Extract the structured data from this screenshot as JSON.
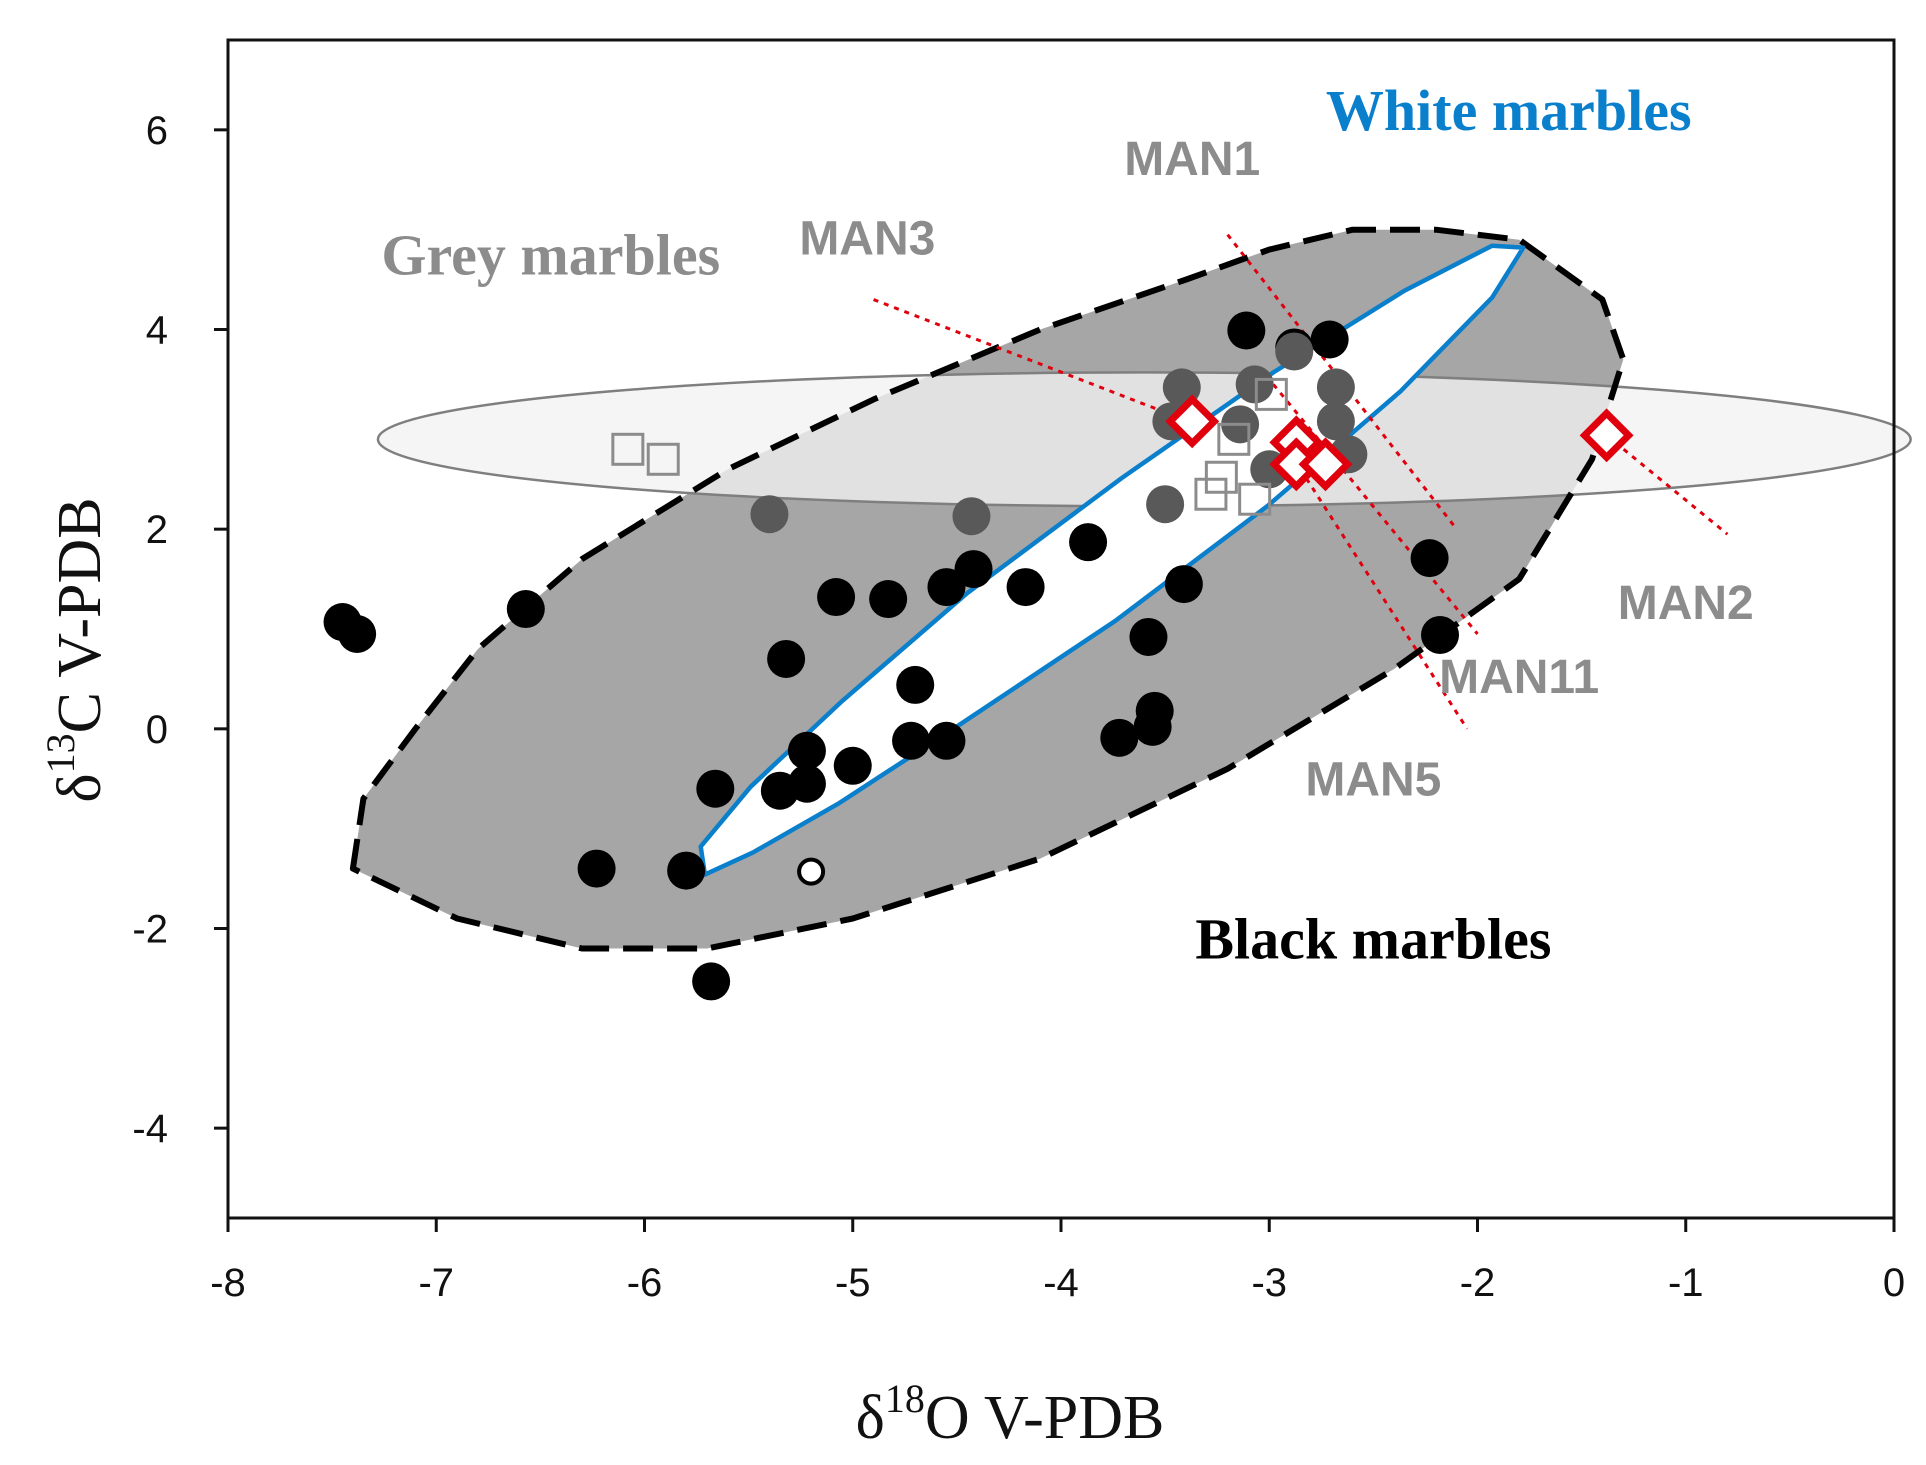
{
  "chart_data": {
    "type": "scatter",
    "xlabel": {
      "prefix": "δ",
      "sup": "18",
      "main": "O  V-PDB"
    },
    "ylabel": {
      "prefix": "δ",
      "sup": "13",
      "main": "C  V-PDB"
    },
    "xlim": [
      -8,
      0
    ],
    "ylim": [
      -4.9,
      6.9
    ],
    "xticks": [
      "-8",
      "-7",
      "-6",
      "-5",
      "-4",
      "-3",
      "-2",
      "-1",
      "0"
    ],
    "yticks": [
      "6",
      "4",
      "2",
      "0",
      "-2",
      "-4"
    ],
    "xtick_values": [
      -8,
      -7,
      -6,
      -5,
      -4,
      -3,
      -2,
      -1,
      0
    ],
    "ytick_values": [
      6,
      4,
      2,
      0,
      -2,
      -4
    ],
    "colors": {
      "black_points": "#000000",
      "grey_points": "#595959",
      "grey_squares": "#8c8c8c",
      "red_diamonds": "#e0000d",
      "white_marbles": "#0a7fcc",
      "grey_field_fill": "#f2f2f2",
      "black_field_fill": "#a6a6a6",
      "grey_label": "#8c8c8c"
    },
    "regions": [
      {
        "name": "Black marbles",
        "label": "Black marbles",
        "style": "dashed-filled",
        "outline": [
          [
            -7.4,
            -1.4
          ],
          [
            -7.35,
            -0.7
          ],
          [
            -7.1,
            0
          ],
          [
            -6.8,
            0.8
          ],
          [
            -6.3,
            1.7
          ],
          [
            -5.6,
            2.6
          ],
          [
            -4.9,
            3.3
          ],
          [
            -4.1,
            4
          ],
          [
            -3.4,
            4.5
          ],
          [
            -3.0,
            4.8
          ],
          [
            -2.6,
            5
          ],
          [
            -2.2,
            5
          ],
          [
            -1.8,
            4.9
          ],
          [
            -1.4,
            4.3
          ],
          [
            -1.3,
            3.7
          ],
          [
            -1.45,
            2.7
          ],
          [
            -1.8,
            1.5
          ],
          [
            -2.4,
            0.6
          ],
          [
            -3.2,
            -0.4
          ],
          [
            -4.1,
            -1.3
          ],
          [
            -5.0,
            -1.9
          ],
          [
            -5.7,
            -2.2
          ],
          [
            -6.3,
            -2.2
          ],
          [
            -6.9,
            -1.9
          ],
          [
            -7.4,
            -1.4
          ]
        ]
      },
      {
        "name": "White marbles",
        "label": "White marbles",
        "style": "solid-outline",
        "outline": [
          [
            -5.73,
            -1.18
          ],
          [
            -5.49,
            -0.58
          ],
          [
            -5.05,
            0.28
          ],
          [
            -4.45,
            1.36
          ],
          [
            -3.71,
            2.51
          ],
          [
            -2.98,
            3.57
          ],
          [
            -2.35,
            4.39
          ],
          [
            -1.93,
            4.84
          ],
          [
            -1.78,
            4.82
          ],
          [
            -1.93,
            4.32
          ],
          [
            -2.37,
            3.38
          ],
          [
            -3.01,
            2.23
          ],
          [
            -3.74,
            1.08
          ],
          [
            -4.48,
            0.05
          ],
          [
            -5.07,
            -0.75
          ],
          [
            -5.48,
            -1.24
          ],
          [
            -5.71,
            -1.46
          ]
        ]
      },
      {
        "name": "Grey marbles",
        "label": "Grey marbles",
        "style": "light-filled",
        "center": [
          -3.6,
          2.9
        ],
        "semi_axes": [
          3.68,
          0.67
        ]
      }
    ],
    "series": [
      {
        "name": "black-points",
        "marker": "filled-circle",
        "points": [
          [
            -7.45,
            1.07
          ],
          [
            -7.38,
            0.95
          ],
          [
            -6.57,
            1.2
          ],
          [
            -5.32,
            0.7
          ],
          [
            -5.08,
            1.32
          ],
          [
            -4.83,
            1.3
          ],
          [
            -4.55,
            1.42
          ],
          [
            -4.42,
            1.6
          ],
          [
            -4.17,
            1.42
          ],
          [
            -3.87,
            1.87
          ],
          [
            -3.41,
            1.45
          ],
          [
            -4.7,
            0.44
          ],
          [
            -4.72,
            -0.12
          ],
          [
            -4.55,
            -0.12
          ],
          [
            -5.22,
            -0.22
          ],
          [
            -5.22,
            -0.55
          ],
          [
            -5.35,
            -0.62
          ],
          [
            -5.0,
            -0.37
          ],
          [
            -5.66,
            -0.6
          ],
          [
            -6.23,
            -1.4
          ],
          [
            -5.8,
            -1.42
          ],
          [
            -5.68,
            -2.53
          ],
          [
            -3.58,
            0.92
          ],
          [
            -3.55,
            0.18
          ],
          [
            -3.56,
            0.02
          ],
          [
            -3.72,
            -0.09
          ],
          [
            -3.11,
            3.99
          ],
          [
            -2.88,
            3.82
          ],
          [
            -2.71,
            3.9
          ],
          [
            -2.23,
            1.71
          ],
          [
            -2.18,
            0.94
          ]
        ]
      },
      {
        "name": "grey-points",
        "marker": "filled-circle",
        "points": [
          [
            -5.4,
            2.15
          ],
          [
            -4.43,
            2.13
          ],
          [
            -3.42,
            3.42
          ],
          [
            -3.47,
            3.08
          ],
          [
            -3.5,
            2.25
          ],
          [
            -3.14,
            3.05
          ],
          [
            -3.07,
            3.45
          ],
          [
            -3.0,
            2.6
          ],
          [
            -2.88,
            3.78
          ],
          [
            -2.68,
            3.42
          ],
          [
            -2.68,
            3.08
          ],
          [
            -2.62,
            2.75
          ]
        ]
      },
      {
        "name": "grey-squares",
        "marker": "open-square",
        "points": [
          [
            -6.08,
            2.8
          ],
          [
            -5.91,
            2.7
          ],
          [
            -3.28,
            2.35
          ],
          [
            -3.23,
            2.52
          ],
          [
            -3.17,
            2.9
          ],
          [
            -3.07,
            2.3
          ],
          [
            -2.99,
            3.35
          ]
        ]
      },
      {
        "name": "open-circle",
        "marker": "open-circle",
        "points": [
          [
            -5.2,
            -1.43
          ]
        ]
      },
      {
        "name": "red-diamonds",
        "marker": "open-diamond",
        "points": [
          [
            -3.37,
            3.08
          ],
          [
            -2.87,
            2.87
          ],
          [
            -2.87,
            2.65
          ],
          [
            -2.73,
            2.65
          ],
          [
            -1.38,
            2.94
          ]
        ]
      }
    ],
    "trend_lines": [
      {
        "name": "MAN1",
        "from": [
          -3.2,
          4.95
        ],
        "to": [
          -2.1,
          2.0
        ]
      },
      {
        "name": "MAN3",
        "from": [
          -4.9,
          4.3
        ],
        "to": [
          -3.35,
          3.05
        ]
      },
      {
        "name": "MAN11",
        "from": [
          -2.98,
          3.45
        ],
        "to": [
          -2.0,
          0.95
        ]
      },
      {
        "name": "MAN5",
        "from": [
          -2.85,
          2.6
        ],
        "to": [
          -2.05,
          0.0
        ]
      },
      {
        "name": "MAN2",
        "from": [
          -1.38,
          2.94
        ],
        "to": [
          -0.8,
          1.95
        ]
      }
    ],
    "annotations": [
      {
        "text": "White marbles",
        "target": "White marbles",
        "x": -1.85,
        "y": 6.0
      },
      {
        "text": "Grey marbles",
        "target": "Grey marbles",
        "x": -6.45,
        "y": 4.55
      },
      {
        "text": "Black marbles",
        "target": "Black marbles",
        "x": -2.5,
        "y": -2.3
      },
      {
        "text": "MAN1",
        "target": "sample",
        "x": -3.37,
        "y": 5.55
      },
      {
        "text": "MAN3",
        "target": "sample",
        "x": -4.93,
        "y": 4.75
      },
      {
        "text": "MAN2",
        "target": "sample",
        "x": -1.0,
        "y": 1.1
      },
      {
        "text": "MAN11",
        "target": "sample",
        "x": -1.8,
        "y": 0.36
      },
      {
        "text": "MAN5",
        "target": "sample",
        "x": -2.5,
        "y": -0.67
      }
    ]
  }
}
